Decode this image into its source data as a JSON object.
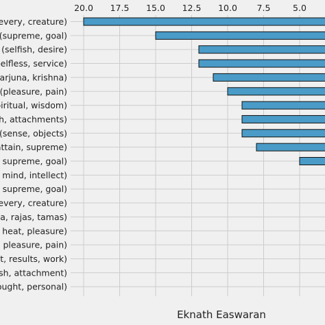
{
  "chart_data": {
    "type": "bar",
    "orientation": "horizontal",
    "x_axis": "top-reversed",
    "grid": true,
    "xlabel": "Eknath Easwaran",
    "xlim": [
      21.5,
      0
    ],
    "xticks": [
      "20.0",
      "17.5",
      "15.0",
      "12.5",
      "10.0",
      "7.5",
      "5.0"
    ],
    "bar_color": "#4a9bc7",
    "bar_edge_color": "#111111",
    "background_color": "#f0f0f0",
    "grid_color": "#cccccc",
    "categories": [
      "every, creature)",
      "(supreme, goal)",
      "(selfish, desire)",
      "elfless, service)",
      "arjuna, krishna)",
      "(pleasure, pain)",
      "piritual, wisdom)",
      "h, attachments)",
      "(sense, objects)",
      "attain, supreme)",
      "supreme, goal)",
      "mind, intellect)",
      "supreme, goal)",
      "every, creature)",
      "a, rajas, tamas)",
      "heat, pleasure)",
      "pleasure, pain)",
      "t, results, work)",
      "sh, attachment)",
      "ought, personal)"
    ],
    "values": [
      20,
      15,
      12,
      12,
      11,
      10,
      9,
      9,
      9,
      8,
      5,
      0,
      0,
      0,
      0,
      0,
      0,
      0,
      0,
      0
    ]
  }
}
